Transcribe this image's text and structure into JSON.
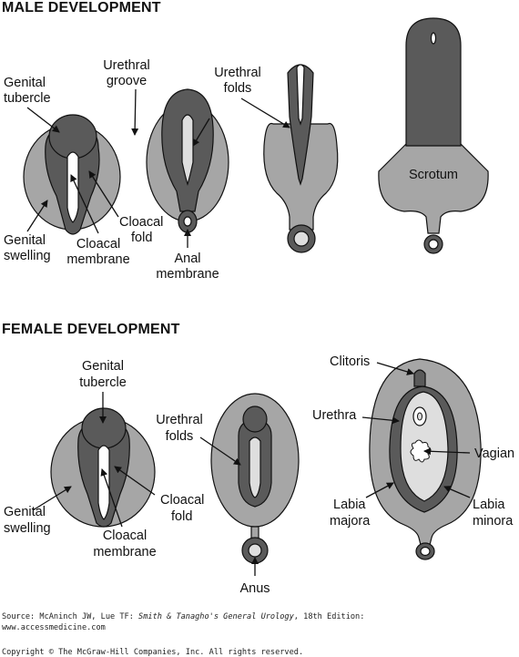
{
  "headings": {
    "male": "MALE DEVELOPMENT",
    "female": "FEMALE DEVELOPMENT"
  },
  "male_labels": {
    "genital_tubercle_1": "Genital",
    "genital_tubercle_2": "tubercle",
    "urethral_groove_1": "Urethral",
    "urethral_groove_2": "groove",
    "urethral_folds_1": "Urethral",
    "urethral_folds_2": "folds",
    "genital_swelling_1": "Genital",
    "genital_swelling_2": "swelling",
    "cloacal_membrane_1": "Cloacal",
    "cloacal_membrane_2": "membrane",
    "cloacal_fold_1": "Cloacal",
    "cloacal_fold_2": "fold",
    "anal_membrane_1": "Anal",
    "anal_membrane_2": "membrane",
    "scrotum": "Scrotum"
  },
  "female_labels": {
    "genital_tubercle_1": "Genital",
    "genital_tubercle_2": "tubercle",
    "genital_swelling_1": "Genital",
    "genital_swelling_2": "swelling",
    "cloacal_membrane_1": "Cloacal",
    "cloacal_membrane_2": "membrane",
    "cloacal_fold_1": "Cloacal",
    "cloacal_fold_2": "fold",
    "urethral_folds_1": "Urethral",
    "urethral_folds_2": "folds",
    "anus": "Anus",
    "clitoris": "Clitoris",
    "urethra": "Urethra",
    "vagian": "Vagian",
    "labia_majora_1": "Labia",
    "labia_majora_2": "majora",
    "labia_minora_1": "Labia",
    "labia_minora_2": "minora"
  },
  "source": {
    "prefix": "Source: McAninch JW, Lue TF: ",
    "title": "Smith & Tanagho's General Urology",
    "suffix": ", 18th Edition:",
    "url": "www.accessmedicine.com",
    "copyright": "Copyright © The McGraw-Hill Companies, Inc. All rights reserved."
  },
  "colors": {
    "dark_tissue": "#5a5a5a",
    "medium_tissue": "#a6a6a6",
    "light_tissue": "#dedede",
    "outline": "#111111"
  }
}
